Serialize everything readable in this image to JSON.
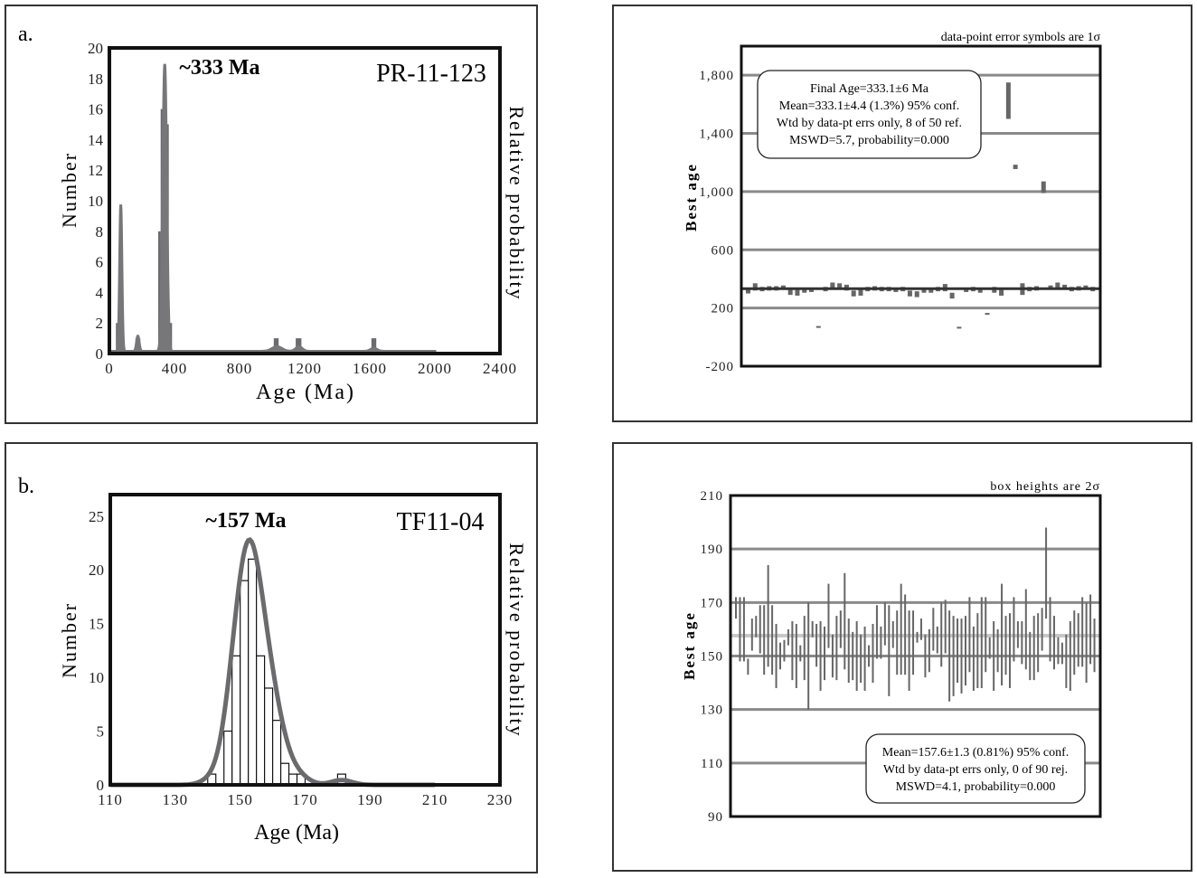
{
  "panels": [
    {
      "label": "a."
    },
    {
      "label": ""
    },
    {
      "label": "b."
    },
    {
      "label": ""
    }
  ],
  "chart_data": [
    {
      "type": "bar",
      "title": "PR-11-123",
      "annotation": "~333 Ma",
      "xlabel": "Age (Ma)",
      "ylabel": "Number",
      "y2label": "Relative probability",
      "xlim": [
        0,
        2400
      ],
      "ylim": [
        0,
        20
      ],
      "xticks": [
        "0",
        "400",
        "800",
        "1200",
        "1600",
        "2000",
        "2400"
      ],
      "yticks": [
        "0",
        "2",
        "4",
        "6",
        "8",
        "10",
        "12",
        "14",
        "16",
        "18",
        "20"
      ],
      "bars": [
        {
          "start": 40,
          "end": 90,
          "count": 2
        },
        {
          "start": 160,
          "end": 190,
          "count": 1
        },
        {
          "start": 300,
          "end": 315,
          "count": 8
        },
        {
          "start": 315,
          "end": 335,
          "count": 16
        },
        {
          "start": 350,
          "end": 365,
          "count": 15
        },
        {
          "start": 365,
          "end": 385,
          "count": 2
        },
        {
          "start": 1010,
          "end": 1040,
          "count": 1
        },
        {
          "start": 1145,
          "end": 1180,
          "count": 1
        },
        {
          "start": 1610,
          "end": 1640,
          "count": 1
        }
      ],
      "probability_curve": [
        {
          "age": 70,
          "height": 9.6,
          "sd": 7
        },
        {
          "age": 340,
          "height": 18.8,
          "sd": 12
        },
        {
          "age": 175,
          "height": 1,
          "sd": 8
        },
        {
          "age": 1030,
          "height": 0.3,
          "sd": 30
        },
        {
          "age": 1165,
          "height": 0.3,
          "sd": 20
        },
        {
          "age": 1625,
          "height": 0.2,
          "sd": 20
        }
      ],
      "curve_end": 2000
    },
    {
      "type": "scatter",
      "note": "data-point error symbols are 1σ",
      "ylabel": "Best age",
      "ylim": [
        -200,
        2000
      ],
      "yticks": [
        -200,
        200,
        600,
        1000,
        1400,
        1800
      ],
      "ytick_labels": [
        "-200",
        "200",
        "600",
        "1,000",
        "1,400",
        "1,800"
      ],
      "mean": 333.1,
      "stats": [
        "Final Age=333.1±6 Ma",
        "Mean=333.1±4.4 (1.3%) 95% conf.",
        "Wtd by data-pt errs only, 8 of 50 ref.",
        "MSWD=5.7, probability=0.000"
      ],
      "values": [
        320,
        345,
        330,
        335,
        335,
        340,
        310,
        305,
        320,
        325,
        70,
        330,
        355,
        350,
        340,
        300,
        305,
        330,
        335,
        330,
        330,
        325,
        330,
        300,
        295,
        320,
        320,
        330,
        340,
        285,
        65,
        325,
        330,
        320,
        160,
        325,
        310,
        1625,
        1170,
        330,
        330,
        335,
        1030,
        340,
        355,
        345,
        330,
        335,
        340,
        330
      ],
      "errors": [
        20,
        25,
        15,
        15,
        15,
        15,
        20,
        20,
        15,
        15,
        6,
        15,
        20,
        20,
        20,
        20,
        20,
        15,
        15,
        15,
        15,
        15,
        15,
        20,
        20,
        15,
        15,
        15,
        25,
        20,
        6,
        15,
        15,
        15,
        6,
        20,
        25,
        125,
        15,
        40,
        15,
        15,
        40,
        15,
        20,
        15,
        15,
        15,
        15,
        15
      ]
    },
    {
      "type": "bar",
      "title": "TF11-04",
      "annotation": "~157 Ma",
      "xlabel": "Age (Ma)",
      "ylabel": "Number",
      "y2label": "Relative probability",
      "xlim": [
        110,
        230
      ],
      "ylim": [
        0,
        27
      ],
      "xticks": [
        "110",
        "130",
        "150",
        "170",
        "190",
        "210",
        "230"
      ],
      "yticks": [
        "0",
        "5",
        "10",
        "15",
        "20",
        "25"
      ],
      "bin_width": 2.5,
      "bins": [
        140,
        145,
        147.5,
        150,
        152.5,
        155,
        157.5,
        160,
        162.5,
        165,
        167.5,
        180
      ],
      "counts": [
        1,
        5,
        12,
        19,
        21,
        12,
        9,
        6,
        2,
        1,
        1,
        1
      ],
      "curve_peak": 22.8,
      "curve_range": [
        110,
        210
      ]
    },
    {
      "type": "scatter",
      "note": "box heights are 2σ",
      "ylabel": "Best age",
      "ylim": [
        90,
        210
      ],
      "yticks": [
        90,
        110,
        130,
        150,
        170,
        190,
        210
      ],
      "ytick_labels": [
        "90",
        "110",
        "130",
        "150",
        "170",
        "190",
        "210"
      ],
      "mean": 157.6,
      "stats": [
        "Mean=157.6±1.3 (0.81%) 95% conf.",
        "Wtd by data-pt errs only, 0 of 90 rej.",
        "MSWD=4.1, probability=0.000"
      ],
      "values": [
        168,
        160,
        160,
        146,
        158,
        161,
        160,
        156,
        165,
        156,
        150,
        150,
        152,
        157,
        152,
        150,
        151,
        153,
        150,
        160,
        154,
        150,
        151,
        165,
        150,
        153,
        160,
        163,
        152,
        150,
        150,
        149,
        149,
        150,
        151,
        159,
        155,
        162,
        152,
        158,
        155,
        160,
        158,
        152,
        155,
        157,
        160,
        150,
        152,
        160,
        156,
        158,
        161,
        150,
        150,
        152,
        150,
        152,
        158,
        149,
        152,
        155,
        158,
        153,
        150,
        152,
        158,
        154,
        152,
        160,
        158,
        155,
        160,
        150,
        153,
        155,
        160,
        181,
        160,
        155,
        152,
        151,
        148,
        150,
        155,
        156,
        159,
        155,
        160,
        154
      ],
      "errors": [
        4,
        12,
        12,
        3,
        6,
        4,
        9,
        13,
        19,
        13,
        12,
        5,
        4,
        3,
        11,
        12,
        3,
        12,
        20,
        3,
        8,
        13,
        10,
        12,
        8,
        12,
        7,
        18,
        12,
        9,
        13,
        9,
        12,
        4,
        11,
        10,
        6,
        8,
        17,
        5,
        12,
        17,
        15,
        15,
        12,
        2,
        4,
        8,
        8,
        8,
        5,
        12,
        10,
        17,
        15,
        12,
        14,
        13,
        14,
        12,
        14,
        17,
        14,
        4,
        13,
        8,
        19,
        11,
        14,
        12,
        5,
        8,
        15,
        9,
        12,
        11,
        8,
        17,
        12,
        10,
        5,
        4,
        10,
        13,
        12,
        10,
        13,
        15,
        13,
        10
      ]
    }
  ]
}
